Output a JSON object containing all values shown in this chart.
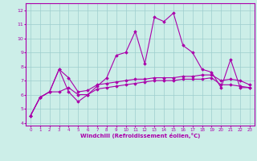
{
  "xlabel": "Windchill (Refroidissement éolien,°C)",
  "bg_color": "#cceee8",
  "line_color": "#aa00aa",
  "xlim": [
    -0.5,
    23.5
  ],
  "ylim": [
    3.8,
    12.5
  ],
  "xticks": [
    0,
    1,
    2,
    3,
    4,
    5,
    6,
    7,
    8,
    9,
    10,
    11,
    12,
    13,
    14,
    15,
    16,
    17,
    18,
    19,
    20,
    21,
    22,
    23
  ],
  "yticks": [
    4,
    5,
    6,
    7,
    8,
    9,
    10,
    11,
    12
  ],
  "line1_x": [
    0,
    1,
    2,
    3,
    4,
    5,
    6,
    7,
    8,
    9,
    10,
    11,
    12,
    13,
    14,
    15,
    16,
    17,
    18,
    19,
    20,
    21,
    22,
    23
  ],
  "line1_y": [
    4.5,
    5.8,
    6.2,
    7.8,
    6.2,
    5.5,
    6.0,
    6.6,
    7.2,
    8.8,
    9.0,
    10.5,
    8.2,
    11.5,
    11.2,
    11.8,
    9.5,
    9.0,
    7.8,
    7.6,
    6.5,
    8.5,
    6.5,
    6.5
  ],
  "line2_x": [
    0,
    1,
    2,
    3,
    4,
    5,
    6,
    7,
    8,
    9,
    10,
    11,
    12,
    13,
    14,
    15,
    16,
    17,
    18,
    19,
    20,
    21,
    22,
    23
  ],
  "line2_y": [
    4.5,
    5.8,
    6.2,
    7.8,
    7.2,
    6.2,
    6.3,
    6.7,
    6.8,
    6.9,
    7.0,
    7.1,
    7.1,
    7.2,
    7.2,
    7.2,
    7.3,
    7.3,
    7.4,
    7.4,
    7.0,
    7.1,
    7.0,
    6.7
  ],
  "line3_x": [
    0,
    1,
    2,
    3,
    4,
    5,
    6,
    7,
    8,
    9,
    10,
    11,
    12,
    13,
    14,
    15,
    16,
    17,
    18,
    19,
    20,
    21,
    22,
    23
  ],
  "line3_y": [
    4.5,
    5.8,
    6.2,
    6.2,
    6.5,
    6.0,
    6.0,
    6.4,
    6.5,
    6.6,
    6.7,
    6.8,
    6.9,
    7.0,
    7.0,
    7.0,
    7.1,
    7.1,
    7.1,
    7.2,
    6.7,
    6.7,
    6.6,
    6.5
  ],
  "grid_color": "#9ecece",
  "marker": "D",
  "markersize": 1.8,
  "linewidth": 0.8
}
